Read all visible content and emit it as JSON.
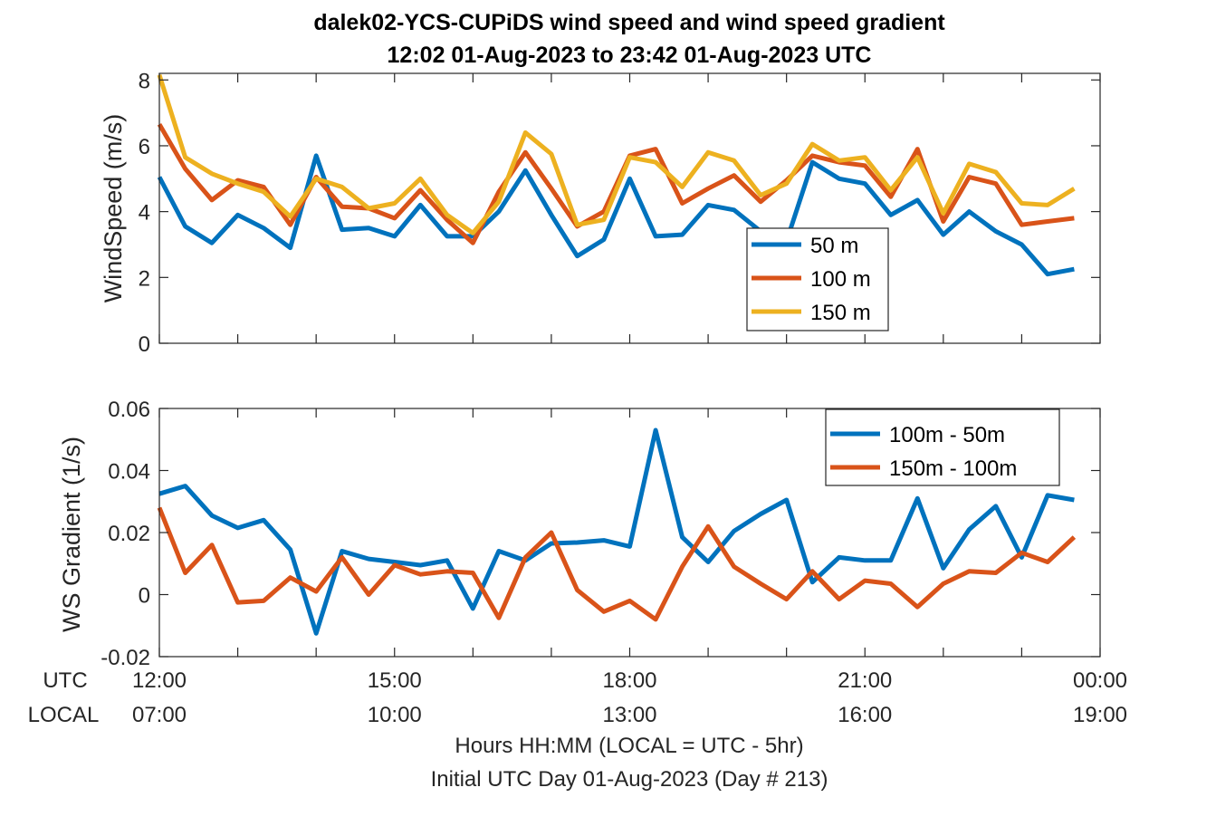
{
  "title": {
    "line1": "dalek02-YCS-CUPiDS  wind speed and wind speed gradient",
    "line2": "12:02 01-Aug-2023 to 23:42 01-Aug-2023  UTC"
  },
  "xaxis": {
    "row_labels": [
      "UTC",
      "LOCAL"
    ],
    "utc_ticks": [
      "12:00",
      "15:00",
      "18:00",
      "21:00",
      "00:00"
    ],
    "local_ticks": [
      "07:00",
      "10:00",
      "13:00",
      "16:00",
      "19:00"
    ],
    "xlabel_line1": "Hours HH:MM  (LOCAL = UTC - 5hr)",
    "xlabel_line2": "Initial UTC Day 01-Aug-2023 (Day # 213)"
  },
  "colors": {
    "blue": "#0072BD",
    "orange": "#D95319",
    "yellow": "#EDB120"
  },
  "chart_data": [
    {
      "type": "line",
      "ylabel": "WindSpeed (m/s)",
      "ylim": [
        0,
        8.2
      ],
      "yticks": [
        0,
        2,
        4,
        6,
        8
      ],
      "ytick_labels": [
        "0",
        "2",
        "4",
        "6",
        "8"
      ],
      "xlim": [
        12.0,
        24.0
      ],
      "x": [
        12.0,
        12.33,
        12.67,
        13.0,
        13.33,
        13.67,
        14.0,
        14.33,
        14.67,
        15.0,
        15.33,
        15.67,
        16.0,
        16.33,
        16.67,
        17.0,
        17.33,
        17.67,
        18.0,
        18.33,
        18.67,
        19.0,
        19.33,
        19.67,
        20.0,
        20.33,
        20.67,
        21.0,
        21.33,
        21.67,
        22.0,
        22.33,
        22.67,
        23.0,
        23.33,
        23.67
      ],
      "legend_position": "center-right",
      "series": [
        {
          "name": "50 m",
          "color": "#0072BD",
          "values": [
            5.05,
            3.55,
            3.05,
            3.9,
            3.5,
            2.9,
            5.7,
            3.45,
            3.5,
            3.25,
            4.2,
            3.25,
            3.25,
            4.0,
            5.25,
            3.9,
            2.65,
            3.15,
            5.0,
            3.25,
            3.3,
            4.2,
            4.05,
            3.4,
            3.1,
            5.5,
            5.0,
            4.85,
            3.9,
            4.35,
            3.3,
            4.0,
            3.4,
            3.0,
            2.1,
            2.25
          ]
        },
        {
          "name": "100 m",
          "color": "#D95319",
          "values": [
            6.65,
            5.3,
            4.35,
            4.95,
            4.75,
            3.6,
            5.05,
            4.15,
            4.1,
            3.8,
            4.65,
            3.75,
            3.05,
            4.6,
            5.8,
            4.7,
            3.55,
            4.0,
            5.7,
            5.9,
            4.25,
            4.7,
            5.1,
            4.3,
            4.95,
            5.7,
            5.5,
            5.4,
            4.45,
            5.9,
            3.7,
            5.05,
            4.85,
            3.6,
            3.7,
            3.8
          ]
        },
        {
          "name": "150 m",
          "color": "#EDB120",
          "values": [
            8.15,
            5.65,
            5.15,
            4.85,
            4.6,
            3.85,
            5.0,
            4.75,
            4.1,
            4.25,
            5.0,
            3.9,
            3.35,
            4.3,
            6.4,
            5.75,
            3.6,
            3.75,
            5.65,
            5.5,
            4.75,
            5.8,
            5.55,
            4.5,
            4.85,
            6.05,
            5.55,
            5.65,
            4.65,
            5.65,
            3.95,
            5.45,
            5.2,
            4.25,
            4.2,
            4.7
          ]
        }
      ]
    },
    {
      "type": "line",
      "ylabel": "WS Gradient (1/s)",
      "ylim": [
        -0.02,
        0.06
      ],
      "yticks": [
        -0.02,
        0,
        0.02,
        0.04,
        0.06
      ],
      "ytick_labels": [
        "-0.02",
        "0",
        "0.02",
        "0.04",
        "0.06"
      ],
      "xlim": [
        12.0,
        24.0
      ],
      "x": [
        12.0,
        12.33,
        12.67,
        13.0,
        13.33,
        13.67,
        14.0,
        14.33,
        14.67,
        15.0,
        15.33,
        15.67,
        16.0,
        16.33,
        16.67,
        17.0,
        17.33,
        17.67,
        18.0,
        18.33,
        18.67,
        19.0,
        19.33,
        19.67,
        20.0,
        20.33,
        20.67,
        21.0,
        21.33,
        21.67,
        22.0,
        22.33,
        22.67,
        23.0,
        23.33,
        23.67
      ],
      "legend_position": "top-right",
      "series": [
        {
          "name": "100m - 50m",
          "color": "#0072BD",
          "values": [
            0.0325,
            0.035,
            0.0255,
            0.0215,
            0.024,
            0.0145,
            -0.0125,
            0.014,
            0.0115,
            0.0105,
            0.0095,
            0.011,
            -0.0045,
            0.014,
            0.011,
            0.0165,
            0.0168,
            0.0175,
            0.0155,
            0.053,
            0.0185,
            0.0105,
            0.0205,
            0.026,
            0.0305,
            0.004,
            0.012,
            0.011,
            0.011,
            0.031,
            0.0085,
            0.021,
            0.0285,
            0.012,
            0.032,
            0.0305
          ]
        },
        {
          "name": "150m - 100m",
          "color": "#D95319",
          "values": [
            0.028,
            0.007,
            0.016,
            -0.0025,
            -0.002,
            0.0055,
            0.001,
            0.012,
            0.0,
            0.0095,
            0.0065,
            0.0075,
            0.007,
            -0.0075,
            0.012,
            0.02,
            0.0015,
            -0.0055,
            -0.002,
            -0.008,
            0.009,
            0.022,
            0.009,
            0.0035,
            -0.0015,
            0.0075,
            -0.0015,
            0.0045,
            0.0035,
            -0.004,
            0.0035,
            0.0075,
            0.007,
            0.0135,
            0.0105,
            0.0185
          ]
        }
      ]
    }
  ]
}
